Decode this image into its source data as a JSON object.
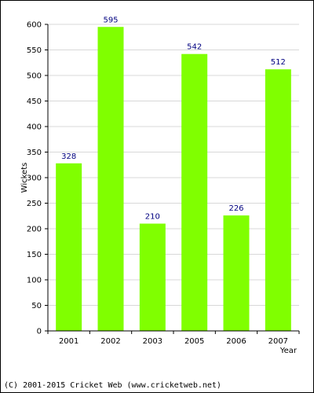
{
  "chart_data": {
    "type": "bar",
    "categories": [
      "2001",
      "2002",
      "2003",
      "2005",
      "2006",
      "2007"
    ],
    "values": [
      328,
      595,
      210,
      542,
      226,
      512
    ],
    "xlabel": "Year",
    "ylabel": "Wickets",
    "ylim": [
      0,
      600
    ],
    "yticks": [
      0,
      50,
      100,
      150,
      200,
      250,
      300,
      350,
      400,
      450,
      500,
      550,
      600
    ],
    "grid": true,
    "data_labels": true,
    "colors": {
      "bar": "#80ff00",
      "grid": "#d8d8d8",
      "axis": "#000000",
      "data_label": "#000080"
    }
  },
  "footer": {
    "copyright": "(C) 2001-2015 Cricket Web (www.cricketweb.net)"
  }
}
